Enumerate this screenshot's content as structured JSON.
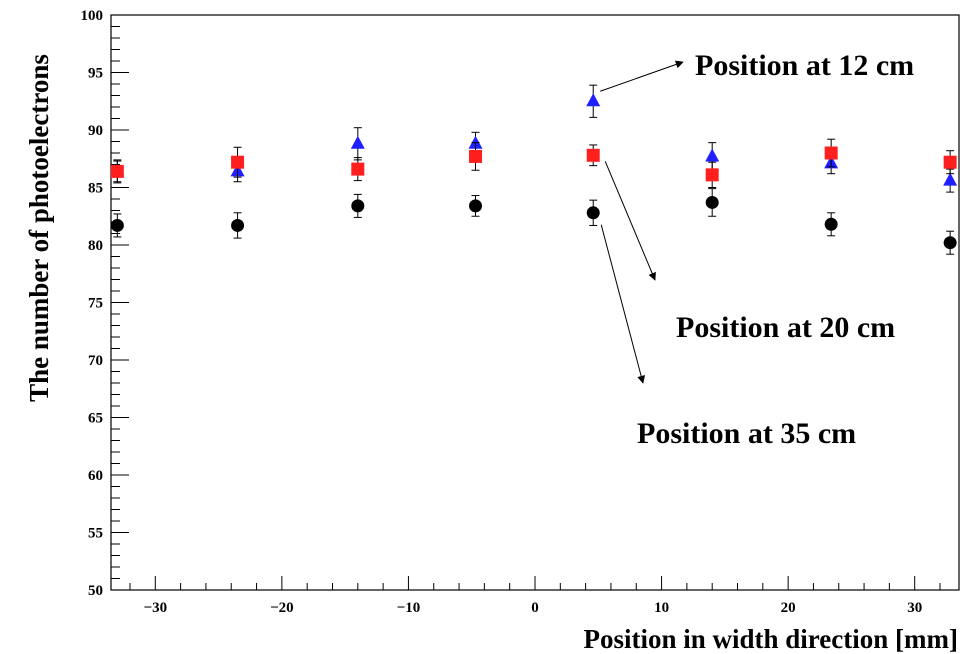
{
  "chart_data": {
    "type": "scatter",
    "xlabel": "Position in width direction [mm]",
    "ylabel": "The number of photoelectrons",
    "xlim": [
      -33.5,
      33.5
    ],
    "ylim": [
      50,
      100
    ],
    "xticks": [
      -30,
      -20,
      -10,
      0,
      10,
      20,
      30
    ],
    "yticks": [
      50,
      55,
      60,
      65,
      70,
      75,
      80,
      85,
      90,
      95,
      100
    ],
    "grid": false,
    "series": [
      {
        "name": "Position at 12 cm",
        "marker": "triangle",
        "color": "#1f1fff",
        "x": [
          -33.0,
          -23.5,
          -14.0,
          -4.7,
          4.6,
          14.0,
          23.4,
          32.8
        ],
        "y": [
          86.4,
          86.4,
          88.8,
          88.8,
          92.5,
          87.7,
          87.1,
          85.6
        ],
        "err": [
          0.9,
          0.9,
          1.4,
          1.0,
          1.4,
          1.2,
          0.9,
          1.0
        ]
      },
      {
        "name": "Position at 20 cm",
        "marker": "square",
        "color": "#ff1f1f",
        "x": [
          -33.0,
          -23.5,
          -14.0,
          -4.7,
          4.6,
          14.0,
          23.4,
          32.8
        ],
        "y": [
          86.4,
          87.2,
          86.6,
          87.7,
          87.8,
          86.1,
          88.0,
          87.2
        ],
        "err": [
          1.0,
          1.3,
          1.0,
          1.2,
          0.9,
          1.1,
          1.2,
          1.0
        ]
      },
      {
        "name": "Position at 35 cm",
        "marker": "circle",
        "color": "#000000",
        "x": [
          -33.0,
          -23.5,
          -14.0,
          -4.7,
          4.6,
          14.0,
          23.4,
          32.8
        ],
        "y": [
          81.7,
          81.7,
          83.4,
          83.4,
          82.8,
          83.7,
          81.8,
          80.2
        ],
        "err": [
          1.0,
          1.1,
          1.0,
          0.9,
          1.1,
          1.2,
          1.0,
          1.0
        ]
      }
    ],
    "annotations": [
      {
        "text": "Position at 12 cm",
        "series": 0,
        "point": 4
      },
      {
        "text": "Position at 20 cm",
        "series": 1,
        "point": 4
      },
      {
        "text": "Position at 35 cm",
        "series": 2,
        "point": 4
      }
    ]
  }
}
